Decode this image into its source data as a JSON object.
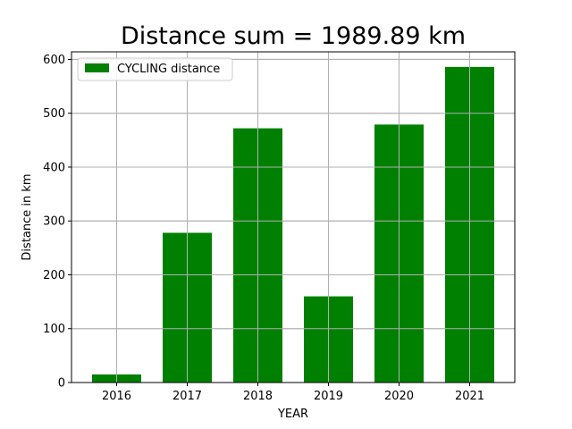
{
  "chart_data": {
    "type": "bar",
    "title": "Distance sum = 1989.89 km",
    "xlabel": "YEAR",
    "ylabel": "Distance in km",
    "categories": [
      "2016",
      "2017",
      "2018",
      "2019",
      "2020",
      "2021"
    ],
    "series": [
      {
        "name": "CYCLING distance",
        "values": [
          15,
          278,
          472,
          160,
          479,
          586
        ],
        "color": "#008000"
      }
    ],
    "ylim": [
      0,
      614
    ],
    "yticks": [
      0,
      100,
      200,
      300,
      400,
      500,
      600
    ],
    "grid": true,
    "legend_position": "upper-left"
  }
}
